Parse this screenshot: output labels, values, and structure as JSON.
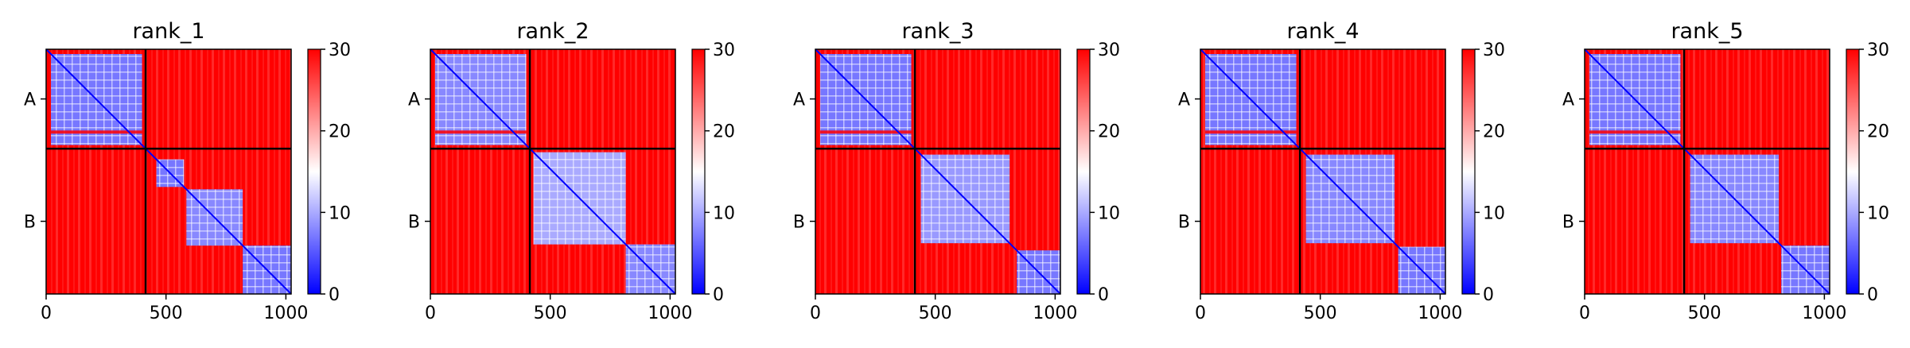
{
  "chart_data": [
    {
      "type": "heatmap",
      "title": "rank_1",
      "x_ticks": [
        0,
        500,
        1000
      ],
      "xlim": [
        0,
        1022
      ],
      "chains": [
        {
          "label": "A",
          "start": 0,
          "end": 415
        },
        {
          "label": "B",
          "start": 415,
          "end": 1022
        }
      ],
      "chain_boundary": 415,
      "colorbar": {
        "min": 0,
        "max": 30,
        "ticks": [
          0,
          10,
          20,
          30
        ],
        "colors": [
          "#0000ff",
          "#ffffff",
          "#ff0000"
        ]
      },
      "blocks": [
        {
          "start": 20,
          "end": 400,
          "level": 7,
          "dashed": true
        },
        {
          "start": 460,
          "end": 575,
          "level": 7
        },
        {
          "start": 585,
          "end": 820,
          "level": 8
        },
        {
          "start": 820,
          "end": 1022,
          "level": 7
        }
      ]
    },
    {
      "type": "heatmap",
      "title": "rank_2",
      "x_ticks": [
        0,
        500,
        1000
      ],
      "xlim": [
        0,
        1022
      ],
      "chains": [
        {
          "label": "A",
          "start": 0,
          "end": 415
        },
        {
          "label": "B",
          "start": 415,
          "end": 1022
        }
      ],
      "chain_boundary": 415,
      "colorbar": {
        "min": 0,
        "max": 30,
        "ticks": [
          0,
          10,
          20,
          30
        ],
        "colors": [
          "#0000ff",
          "#ffffff",
          "#ff0000"
        ]
      },
      "blocks": [
        {
          "start": 20,
          "end": 400,
          "level": 8,
          "dashed": true
        },
        {
          "start": 430,
          "end": 815,
          "level": 10
        },
        {
          "start": 815,
          "end": 1022,
          "level": 8
        }
      ]
    },
    {
      "type": "heatmap",
      "title": "rank_3",
      "x_ticks": [
        0,
        500,
        1000
      ],
      "xlim": [
        0,
        1022
      ],
      "chains": [
        {
          "label": "A",
          "start": 0,
          "end": 415
        },
        {
          "label": "B",
          "start": 415,
          "end": 1022
        }
      ],
      "chain_boundary": 415,
      "colorbar": {
        "min": 0,
        "max": 30,
        "ticks": [
          0,
          10,
          20,
          30
        ],
        "colors": [
          "#0000ff",
          "#ffffff",
          "#ff0000"
        ]
      },
      "blocks": [
        {
          "start": 20,
          "end": 400,
          "level": 7,
          "dashed": true
        },
        {
          "start": 440,
          "end": 810,
          "level": 9
        },
        {
          "start": 840,
          "end": 1022,
          "level": 7
        }
      ]
    },
    {
      "type": "heatmap",
      "title": "rank_4",
      "x_ticks": [
        0,
        500,
        1000
      ],
      "xlim": [
        0,
        1022
      ],
      "chains": [
        {
          "label": "A",
          "start": 0,
          "end": 415
        },
        {
          "label": "B",
          "start": 415,
          "end": 1022
        }
      ],
      "chain_boundary": 415,
      "colorbar": {
        "min": 0,
        "max": 30,
        "ticks": [
          0,
          10,
          20,
          30
        ],
        "colors": [
          "#0000ff",
          "#ffffff",
          "#ff0000"
        ]
      },
      "blocks": [
        {
          "start": 20,
          "end": 400,
          "level": 7,
          "dashed": true
        },
        {
          "start": 440,
          "end": 810,
          "level": 8
        },
        {
          "start": 825,
          "end": 1022,
          "level": 7
        }
      ]
    },
    {
      "type": "heatmap",
      "title": "rank_5",
      "x_ticks": [
        0,
        500,
        1000
      ],
      "xlim": [
        0,
        1022
      ],
      "chains": [
        {
          "label": "A",
          "start": 0,
          "end": 415
        },
        {
          "label": "B",
          "start": 415,
          "end": 1022
        }
      ],
      "chain_boundary": 415,
      "colorbar": {
        "min": 0,
        "max": 30,
        "ticks": [
          0,
          10,
          20,
          30
        ],
        "colors": [
          "#0000ff",
          "#ffffff",
          "#ff0000"
        ]
      },
      "blocks": [
        {
          "start": 20,
          "end": 400,
          "level": 7,
          "dashed": true
        },
        {
          "start": 440,
          "end": 810,
          "level": 8
        },
        {
          "start": 820,
          "end": 1022,
          "level": 7
        }
      ]
    }
  ]
}
